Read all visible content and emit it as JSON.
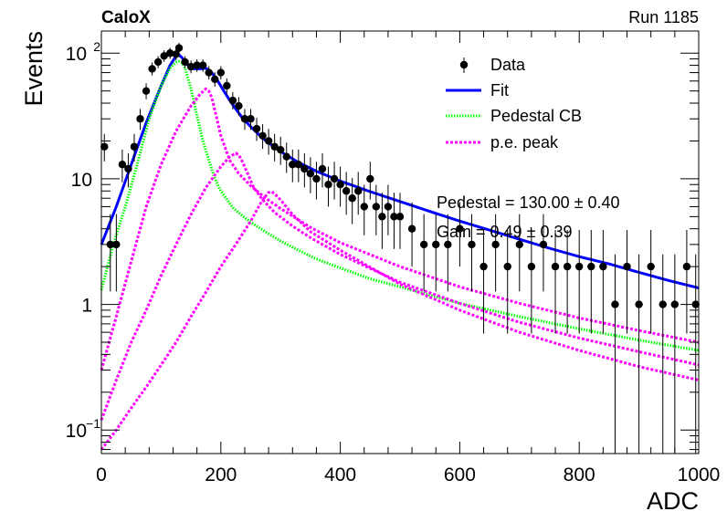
{
  "chart_data": {
    "type": "scatter",
    "experiment_label": "CaloX",
    "run_label": "Run 1185",
    "xlabel": "ADC",
    "ylabel": "Events",
    "xlim": [
      0,
      1000
    ],
    "ylim": [
      0.065,
      150
    ],
    "y_scale": "log",
    "x_ticks": [
      "0",
      "200",
      "400",
      "600",
      "800",
      "1000"
    ],
    "y_tick_labels": [
      {
        "value": 0.1,
        "base": "10",
        "exp": "−1"
      },
      {
        "value": 1,
        "text": "1"
      },
      {
        "value": 10,
        "text": "10"
      },
      {
        "value": 100,
        "base": "10",
        "exp": "2"
      }
    ],
    "legend": {
      "position": "top-right",
      "entries": [
        {
          "label": "Data",
          "color": "#000000",
          "style": "marker"
        },
        {
          "label": "Fit",
          "color": "#0000ff",
          "style": "solid"
        },
        {
          "label": "Pedestal CB",
          "color": "#00ff00",
          "style": "dotted"
        },
        {
          "label": "p.e. peak",
          "color": "#ff00ff",
          "style": "dotted"
        }
      ]
    },
    "annotations": [
      {
        "text": "Pedestal = 130.00 ± 0.40"
      },
      {
        "text": "Gain = 0.49 ± 0.39"
      }
    ],
    "series": [
      {
        "name": "Data",
        "type": "points",
        "color": "#000000",
        "x": [
          5,
          15,
          25,
          35,
          45,
          55,
          65,
          75,
          85,
          95,
          105,
          115,
          125,
          130,
          140,
          150,
          160,
          170,
          180,
          190,
          200,
          210,
          220,
          230,
          240,
          250,
          260,
          270,
          280,
          290,
          300,
          310,
          320,
          330,
          340,
          350,
          360,
          370,
          380,
          390,
          400,
          410,
          420,
          430,
          440,
          450,
          460,
          470,
          480,
          490,
          500,
          520,
          540,
          560,
          580,
          600,
          620,
          640,
          660,
          680,
          700,
          720,
          740,
          760,
          780,
          800,
          820,
          840,
          860,
          880,
          900,
          920,
          940,
          960,
          980,
          995
        ],
        "y": [
          18,
          3,
          3,
          13,
          12,
          18,
          30,
          50,
          75,
          85,
          95,
          100,
          98,
          110,
          85,
          78,
          80,
          80,
          70,
          62,
          70,
          55,
          42,
          38,
          30,
          30,
          25,
          22,
          20,
          18,
          17,
          15,
          13,
          13,
          12,
          11,
          10,
          12,
          9,
          10,
          9,
          8,
          7,
          8,
          6,
          10,
          6,
          5,
          6,
          5,
          5,
          4,
          3,
          3,
          3,
          4,
          3,
          2,
          3,
          2,
          3,
          2,
          3,
          2,
          2,
          2,
          2,
          2,
          1,
          2,
          1,
          2,
          1,
          1,
          2,
          1
        ]
      },
      {
        "name": "Fit",
        "type": "line",
        "color": "#0000ff",
        "x": [
          0,
          25,
          50,
          75,
          100,
          115,
          125,
          130,
          135,
          145,
          155,
          165,
          175,
          185,
          195,
          205,
          215,
          225,
          235,
          250,
          270,
          300,
          330,
          360,
          400,
          450,
          500,
          550,
          600,
          650,
          700,
          750,
          800,
          850,
          900,
          950,
          1000
        ],
        "y": [
          3,
          6,
          13,
          28,
          55,
          80,
          95,
          97,
          92,
          80,
          75,
          75,
          76,
          70,
          60,
          50,
          42,
          36,
          31,
          26,
          21,
          16.5,
          13.5,
          11.5,
          9.6,
          7.9,
          6.6,
          5.5,
          4.6,
          3.9,
          3.3,
          2.8,
          2.4,
          2.1,
          1.8,
          1.55,
          1.35
        ]
      },
      {
        "name": "Pedestal CB",
        "type": "line",
        "color": "#00ff00",
        "x": [
          0,
          20,
          40,
          60,
          80,
          100,
          115,
          125,
          130,
          135,
          140,
          150,
          160,
          170,
          180,
          190,
          200,
          220,
          240,
          260,
          280,
          300,
          330,
          360,
          400,
          450,
          500,
          600,
          700,
          800,
          900,
          1000
        ],
        "y": [
          1.3,
          3,
          6,
          13,
          30,
          55,
          76,
          85,
          86,
          84,
          76,
          52,
          32,
          20,
          14,
          10,
          8,
          5.9,
          4.9,
          4.2,
          3.65,
          3.2,
          2.7,
          2.3,
          1.95,
          1.6,
          1.38,
          1.02,
          0.8,
          0.64,
          0.52,
          0.43
        ]
      },
      {
        "name": "p.e. peak 1",
        "type": "line",
        "color": "#ff00ff",
        "x": [
          0,
          25,
          50,
          75,
          100,
          125,
          150,
          165,
          175,
          180,
          185,
          190,
          200,
          215,
          230,
          250,
          275,
          300,
          350,
          400,
          500,
          600,
          700,
          800,
          900,
          1000
        ],
        "y": [
          0.3,
          0.8,
          2.2,
          6,
          13,
          24,
          38,
          47,
          52,
          50,
          44,
          35,
          22,
          14,
          11,
          8.8,
          7,
          5.8,
          4.1,
          3.1,
          2,
          1.38,
          1.02,
          0.78,
          0.62,
          0.5
        ]
      },
      {
        "name": "p.e. peak 2",
        "type": "line",
        "color": "#ff00ff",
        "x": [
          0,
          25,
          50,
          75,
          100,
          125,
          150,
          175,
          200,
          215,
          225,
          230,
          235,
          245,
          255,
          270,
          290,
          320,
          350,
          400,
          500,
          600,
          700,
          800,
          900,
          1000
        ],
        "y": [
          0.12,
          0.25,
          0.5,
          0.9,
          1.7,
          3,
          5.2,
          8.5,
          12.5,
          15,
          16,
          15.5,
          14,
          11,
          8.5,
          6.8,
          5.4,
          4.2,
          3.4,
          2.5,
          1.5,
          1.02,
          0.72,
          0.54,
          0.42,
          0.33
        ]
      },
      {
        "name": "p.e. peak 3",
        "type": "line",
        "color": "#ff00ff",
        "x": [
          0,
          25,
          50,
          75,
          100,
          125,
          150,
          175,
          200,
          225,
          250,
          265,
          275,
          280,
          285,
          290,
          300,
          320,
          350,
          400,
          500,
          600,
          700,
          800,
          900,
          1000
        ],
        "y": [
          0.07,
          0.1,
          0.15,
          0.22,
          0.33,
          0.5,
          0.8,
          1.25,
          2,
          3,
          4.6,
          6.2,
          7.3,
          7.8,
          7.9,
          7.6,
          6.8,
          5.2,
          3.8,
          2.7,
          1.45,
          0.9,
          0.6,
          0.43,
          0.32,
          0.25
        ]
      }
    ]
  }
}
